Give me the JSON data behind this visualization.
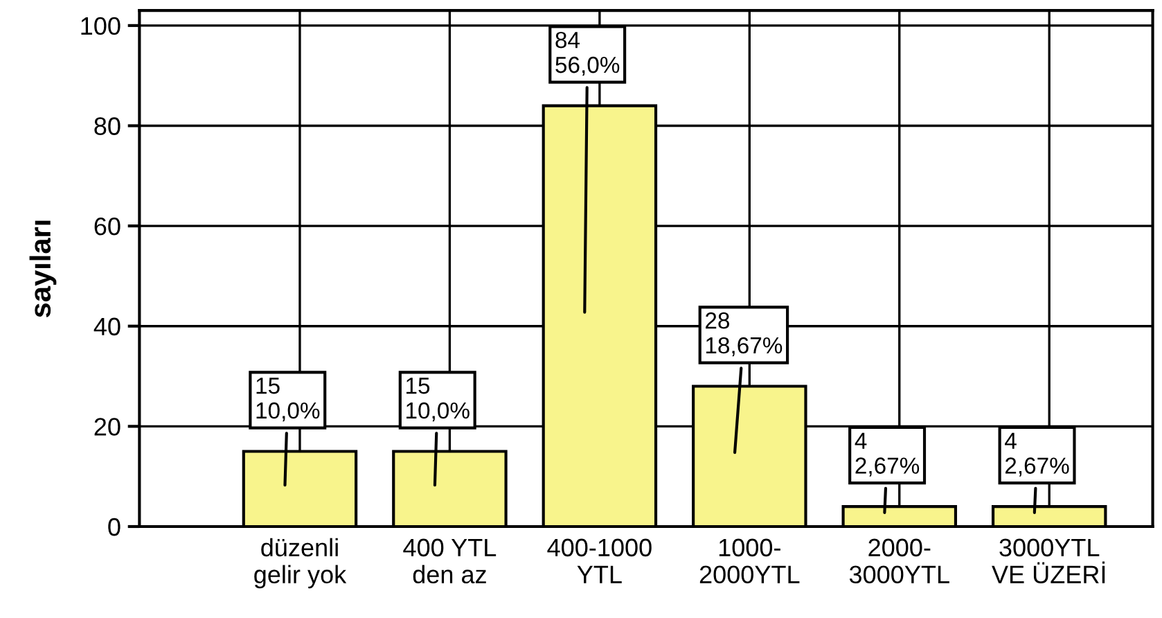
{
  "chart_data": {
    "type": "bar",
    "ylabel": "sayıları",
    "categories": [
      "düzenli\ngelir yok",
      "400 YTL\nden az",
      "400-1000\nYTL",
      "1000-\n2000YTL",
      "2000-\n3000YTL",
      "3000YTL\nVE ÜZERİ"
    ],
    "values": [
      15,
      15,
      84,
      28,
      4,
      4
    ],
    "value_labels": [
      "15\n10,0%",
      "15\n10,0%",
      "84\n56,0%",
      "28\n18,67%",
      "4\n2,67%",
      "4\n2,67%"
    ],
    "color": "#f8f48c",
    "ylim": [
      0,
      103
    ],
    "yticks": [
      0,
      20,
      40,
      60,
      80,
      100
    ],
    "grid": true
  }
}
